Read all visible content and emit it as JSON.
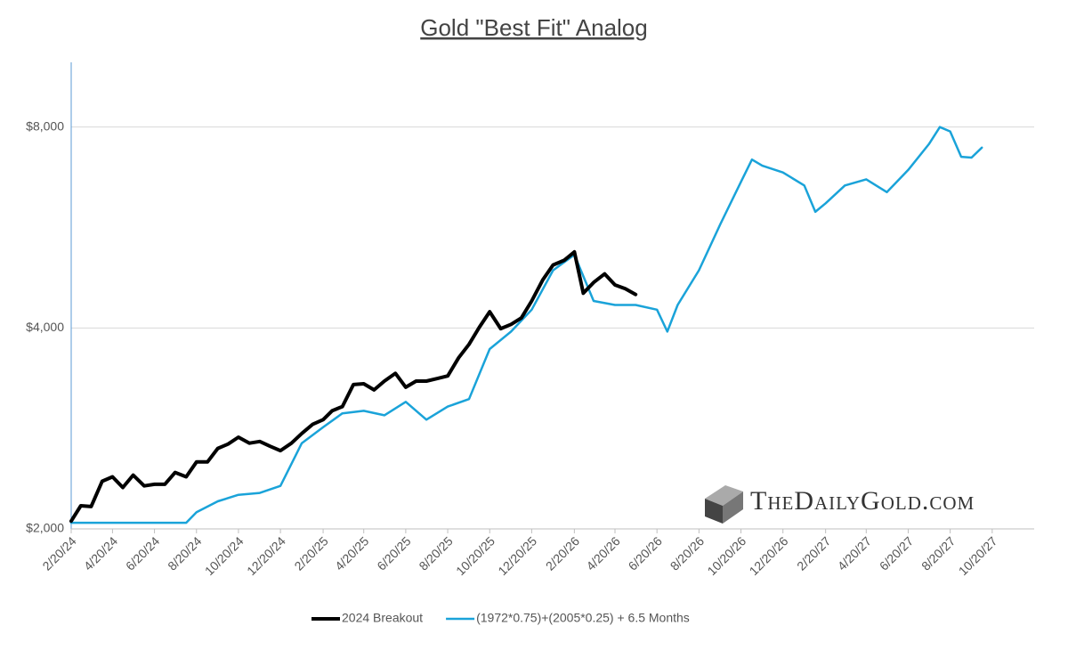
{
  "chart_data": {
    "type": "line",
    "title": "Gold \"Best Fit\" Analog",
    "watermark": "TheDailyGold.com",
    "log_scale_y": true,
    "grid": true,
    "legend": "bottom",
    "ylim": [
      2000,
      10000
    ],
    "yticks": [
      {
        "value": 2000,
        "label": "$2,000"
      },
      {
        "value": 4000,
        "label": "$4,000"
      },
      {
        "value": 8000,
        "label": "$8,000"
      }
    ],
    "xlim": [
      "2024-02-20",
      "2027-12-20"
    ],
    "xticks": [
      {
        "value": "2024-02-20",
        "label": "2/20/24"
      },
      {
        "value": "2024-04-20",
        "label": "4/20/24"
      },
      {
        "value": "2024-06-20",
        "label": "6/20/24"
      },
      {
        "value": "2024-08-20",
        "label": "8/20/24"
      },
      {
        "value": "2024-10-20",
        "label": "10/20/24"
      },
      {
        "value": "2024-12-20",
        "label": "12/20/24"
      },
      {
        "value": "2025-02-20",
        "label": "2/20/25"
      },
      {
        "value": "2025-04-20",
        "label": "4/20/25"
      },
      {
        "value": "2025-06-20",
        "label": "6/20/25"
      },
      {
        "value": "2025-08-20",
        "label": "8/20/25"
      },
      {
        "value": "2025-10-20",
        "label": "10/20/25"
      },
      {
        "value": "2025-12-20",
        "label": "12/20/25"
      },
      {
        "value": "2026-02-20",
        "label": "2/20/26"
      },
      {
        "value": "2026-04-20",
        "label": "4/20/26"
      },
      {
        "value": "2026-06-20",
        "label": "6/20/26"
      },
      {
        "value": "2026-08-20",
        "label": "8/20/26"
      },
      {
        "value": "2026-10-20",
        "label": "10/20/26"
      },
      {
        "value": "2026-12-20",
        "label": "12/20/26"
      },
      {
        "value": "2027-02-20",
        "label": "2/20/27"
      },
      {
        "value": "2027-04-20",
        "label": "4/20/27"
      },
      {
        "value": "2027-06-20",
        "label": "6/20/27"
      },
      {
        "value": "2027-08-20",
        "label": "8/20/27"
      },
      {
        "value": "2027-10-20",
        "label": "10/20/27"
      }
    ],
    "series": [
      {
        "name": "2024 Breakout",
        "color": "#000000",
        "width": 4,
        "x": [
          "2024-02-20",
          "2024-03-05",
          "2024-03-20",
          "2024-04-05",
          "2024-04-20",
          "2024-05-05",
          "2024-05-20",
          "2024-06-05",
          "2024-06-20",
          "2024-07-05",
          "2024-07-20",
          "2024-08-05",
          "2024-08-20",
          "2024-09-05",
          "2024-09-20",
          "2024-10-05",
          "2024-10-20",
          "2024-11-05",
          "2024-11-20",
          "2024-12-05",
          "2024-12-20",
          "2025-01-05",
          "2025-01-20",
          "2025-02-05",
          "2025-02-20",
          "2025-03-05",
          "2025-03-20",
          "2025-04-05",
          "2025-04-20",
          "2025-05-05",
          "2025-05-20",
          "2025-06-05",
          "2025-06-20",
          "2025-07-05",
          "2025-07-20",
          "2025-08-05",
          "2025-08-20",
          "2025-09-05",
          "2025-09-20",
          "2025-10-05",
          "2025-10-20",
          "2025-11-05",
          "2025-11-20",
          "2025-12-05",
          "2025-12-20",
          "2026-01-05",
          "2026-01-20",
          "2026-02-05",
          "2026-02-20",
          "2026-03-05",
          "2026-03-20",
          "2026-04-05",
          "2026-04-20",
          "2026-05-05",
          "2026-05-20"
        ],
        "values": [
          2055,
          2166,
          2160,
          2357,
          2394,
          2307,
          2408,
          2320,
          2333,
          2333,
          2430,
          2394,
          2520,
          2520,
          2640,
          2680,
          2744,
          2688,
          2704,
          2660,
          2620,
          2688,
          2780,
          2870,
          2915,
          3005,
          3050,
          3290,
          3300,
          3230,
          3330,
          3420,
          3260,
          3330,
          3330,
          3360,
          3390,
          3610,
          3780,
          4010,
          4230,
          3990,
          4050,
          4140,
          4390,
          4720,
          4970,
          5050,
          5200,
          4510,
          4680,
          4820,
          4640,
          4580,
          4490
        ]
      },
      {
        "name": "(1972*0.75)+(2005*0.25) + 6.5 Months",
        "color": "#1aa3d9",
        "width": 2.5,
        "x": [
          "2024-02-20",
          "2024-04-20",
          "2024-06-20",
          "2024-08-05",
          "2024-08-20",
          "2024-09-20",
          "2024-10-20",
          "2024-11-20",
          "2024-12-20",
          "2025-01-20",
          "2025-02-20",
          "2025-03-20",
          "2025-04-20",
          "2025-05-20",
          "2025-06-20",
          "2025-07-20",
          "2025-08-20",
          "2025-09-20",
          "2025-10-20",
          "2025-11-20",
          "2025-12-20",
          "2026-01-20",
          "2026-02-20",
          "2026-03-20",
          "2026-04-20",
          "2026-05-20",
          "2026-06-20",
          "2026-07-05",
          "2026-07-20",
          "2026-08-20",
          "2026-09-20",
          "2026-10-20",
          "2026-11-05",
          "2026-11-20",
          "2026-12-20",
          "2027-01-20",
          "2027-02-05",
          "2027-02-20",
          "2027-03-20",
          "2027-04-20",
          "2027-05-20",
          "2027-06-20",
          "2027-07-20",
          "2027-08-05",
          "2027-08-20",
          "2027-09-05",
          "2027-09-20",
          "2027-10-05"
        ],
        "values": [
          2043,
          2043,
          2043,
          2043,
          2119,
          2200,
          2250,
          2264,
          2320,
          2688,
          2840,
          2980,
          3005,
          2960,
          3100,
          2915,
          3050,
          3130,
          3720,
          3950,
          4260,
          4880,
          5150,
          4390,
          4330,
          4330,
          4260,
          3950,
          4330,
          4880,
          5720,
          6620,
          7150,
          7000,
          6840,
          6540,
          5970,
          6150,
          6540,
          6680,
          6390,
          6900,
          7540,
          8000,
          7880,
          7220,
          7200,
          7450
        ]
      }
    ]
  }
}
